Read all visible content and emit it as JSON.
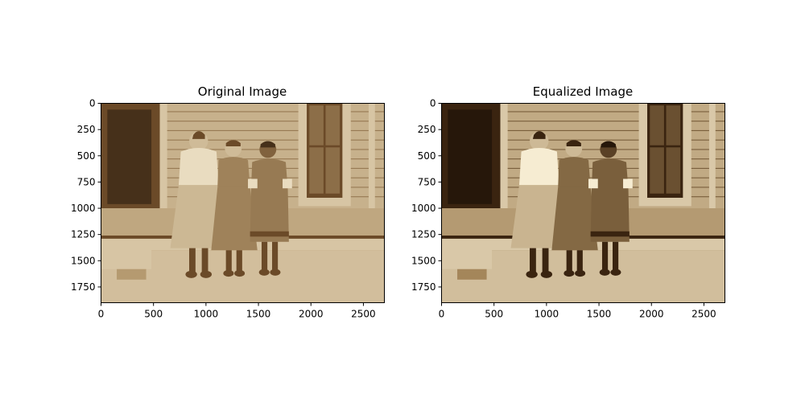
{
  "chart_data": [
    {
      "type": "image",
      "title": "Original Image",
      "image_extent": {
        "width": 2700,
        "height": 1900
      },
      "xticks": [
        0,
        500,
        1000,
        1500,
        2000,
        2500
      ],
      "yticks": [
        0,
        250,
        500,
        750,
        1000,
        1250,
        1500,
        1750
      ],
      "xlim": [
        0,
        2700
      ],
      "ylim": [
        1900,
        0
      ],
      "tone": "sepia photograph, soft contrast",
      "colors": {
        "shadow": "#6b4a28",
        "mid": "#b59a70",
        "highlight": "#e9dcc0"
      }
    },
    {
      "type": "image",
      "title": "Equalized Image",
      "image_extent": {
        "width": 2700,
        "height": 1900
      },
      "xticks": [
        0,
        500,
        1000,
        1500,
        2000,
        2500
      ],
      "yticks": [
        0,
        250,
        500,
        750,
        1000,
        1250,
        1500,
        1750
      ],
      "xlim": [
        0,
        2700
      ],
      "ylim": [
        1900,
        0
      ],
      "tone": "sepia photograph, histogram equalized, higher contrast",
      "colors": {
        "shadow": "#3a2410",
        "mid": "#a4865a",
        "highlight": "#f6ecd2"
      }
    }
  ]
}
